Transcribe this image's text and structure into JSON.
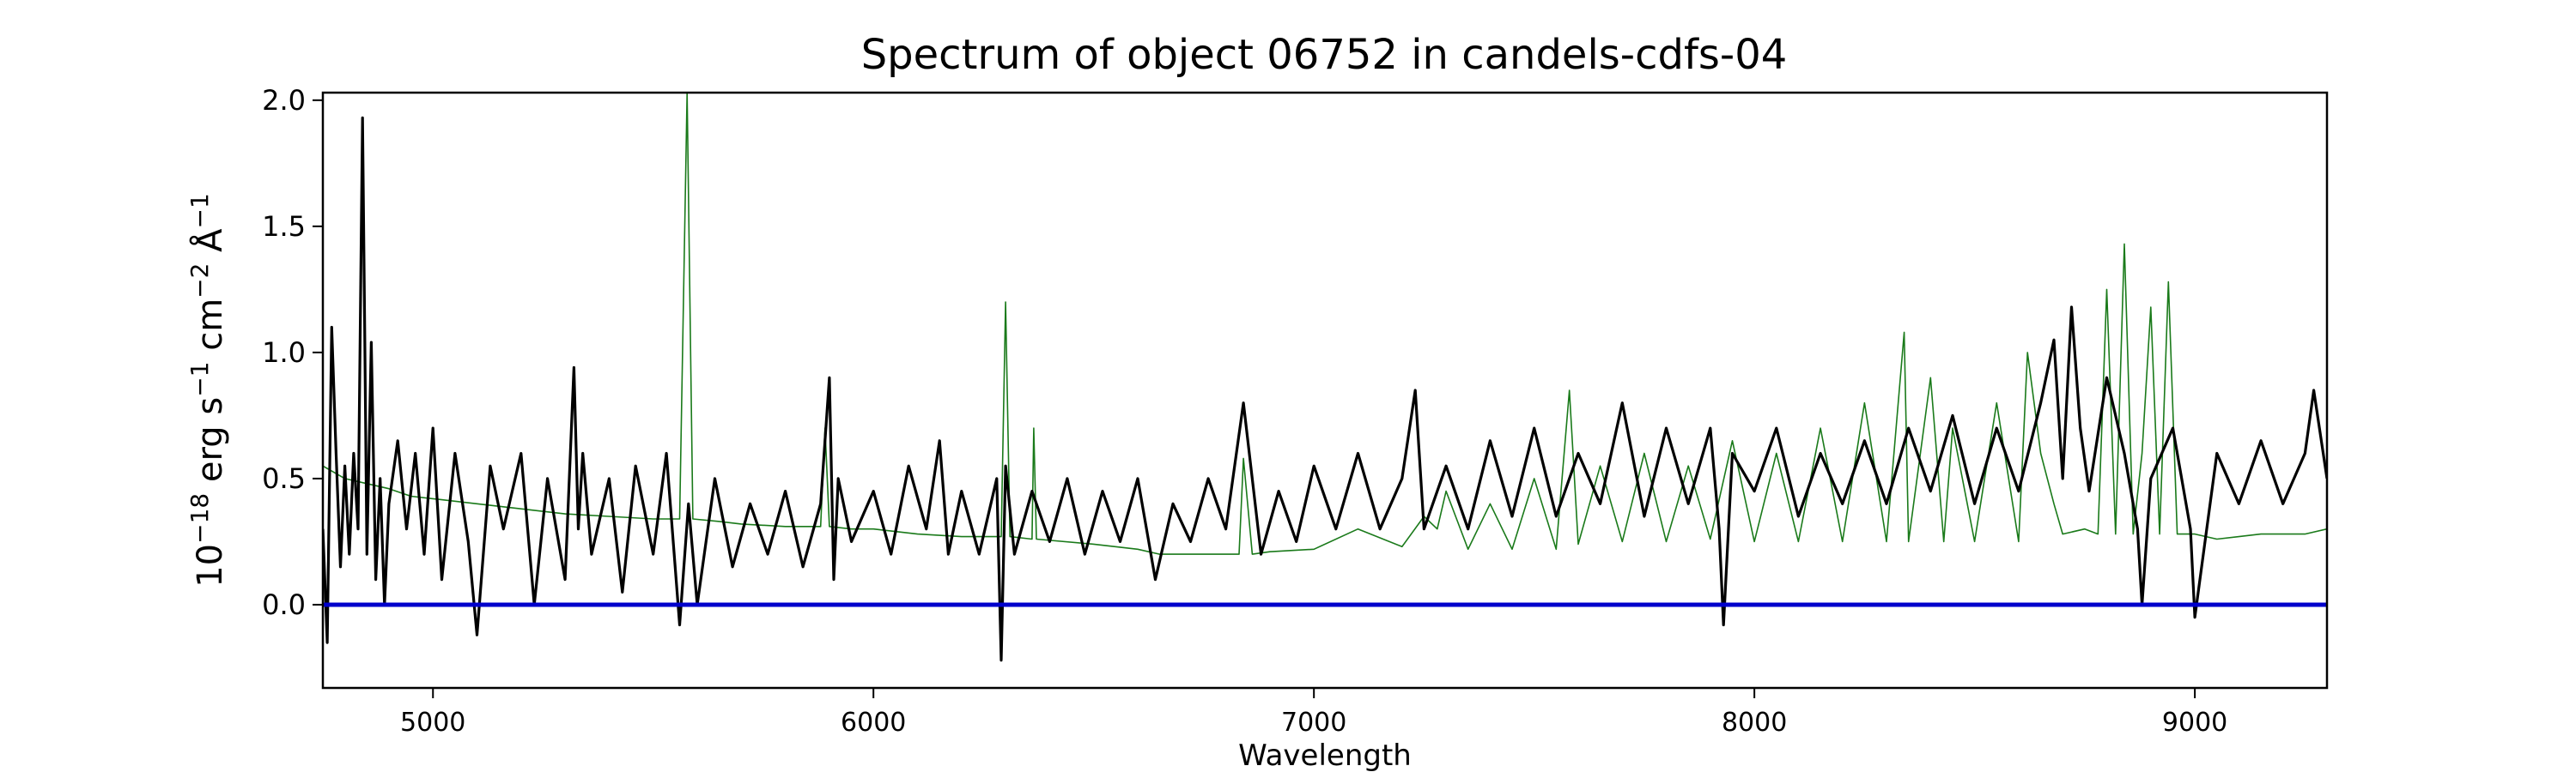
{
  "chart_data": {
    "type": "line",
    "title": "Spectrum of object 06752 in candels-cdfs-04",
    "xlabel": "Wavelength",
    "ylabel_parts": [
      "10",
      "−18",
      " erg s",
      "−1",
      " cm",
      "−2",
      " Å",
      "−1"
    ],
    "xlim": [
      4750,
      9300
    ],
    "ylim": [
      -0.33,
      2.03
    ],
    "x_ticks": [
      5000,
      6000,
      7000,
      8000,
      9000
    ],
    "x_tick_labels": [
      "5000",
      "6000",
      "7000",
      "8000",
      "9000"
    ],
    "y_ticks": [
      0.0,
      0.5,
      1.0,
      1.5,
      2.0
    ],
    "y_tick_labels": [
      "0.0",
      "0.5",
      "1.0",
      "1.5",
      "2.0"
    ],
    "grid": false,
    "legend": "none",
    "series": [
      {
        "color": "#1a7a1a",
        "x": [
          4750,
          4800,
          4850,
          4900,
          4950,
          5000,
          5100,
          5200,
          5300,
          5400,
          5500,
          5560,
          5577,
          5590,
          5650,
          5700,
          5800,
          5880,
          5890,
          5900,
          5950,
          6000,
          6100,
          6200,
          6290,
          6300,
          6310,
          6360,
          6364,
          6370,
          6500,
          6600,
          6650,
          6700,
          6800,
          6830,
          6840,
          6860,
          6900,
          7000,
          7100,
          7200,
          7250,
          7280,
          7300,
          7350,
          7400,
          7450,
          7500,
          7550,
          7580,
          7600,
          7650,
          7700,
          7750,
          7800,
          7850,
          7900,
          7950,
          8000,
          8050,
          8100,
          8150,
          8200,
          8250,
          8300,
          8340,
          8350,
          8400,
          8430,
          8450,
          8500,
          8550,
          8600,
          8620,
          8650,
          8680,
          8700,
          8750,
          8780,
          8800,
          8820,
          8840,
          8860,
          8880,
          8900,
          8920,
          8940,
          8960,
          9000,
          9050,
          9100,
          9150,
          9200,
          9250,
          9300
        ],
        "y": [
          0.55,
          0.5,
          0.48,
          0.46,
          0.43,
          0.42,
          0.4,
          0.38,
          0.36,
          0.35,
          0.34,
          0.34,
          2.03,
          0.34,
          0.33,
          0.32,
          0.31,
          0.31,
          0.7,
          0.31,
          0.3,
          0.3,
          0.28,
          0.27,
          0.27,
          1.2,
          0.27,
          0.26,
          0.7,
          0.26,
          0.24,
          0.22,
          0.2,
          0.2,
          0.2,
          0.2,
          0.58,
          0.2,
          0.21,
          0.22,
          0.3,
          0.23,
          0.35,
          0.3,
          0.45,
          0.22,
          0.4,
          0.22,
          0.5,
          0.22,
          0.85,
          0.24,
          0.55,
          0.25,
          0.6,
          0.25,
          0.55,
          0.26,
          0.65,
          0.25,
          0.6,
          0.25,
          0.7,
          0.25,
          0.8,
          0.25,
          1.08,
          0.25,
          0.9,
          0.25,
          0.7,
          0.25,
          0.8,
          0.25,
          1.0,
          0.6,
          0.4,
          0.28,
          0.3,
          0.28,
          1.25,
          0.28,
          1.43,
          0.28,
          0.6,
          1.18,
          0.28,
          1.28,
          0.28,
          0.28,
          0.26,
          0.27,
          0.28,
          0.28,
          0.28,
          0.3
        ]
      },
      {
        "color": "#000000",
        "x": [
          4750,
          4760,
          4770,
          4780,
          4790,
          4800,
          4810,
          4820,
          4830,
          4840,
          4845,
          4850,
          4860,
          4870,
          4880,
          4890,
          4900,
          4920,
          4940,
          4960,
          4980,
          5000,
          5020,
          5050,
          5080,
          5100,
          5130,
          5160,
          5200,
          5230,
          5260,
          5300,
          5320,
          5330,
          5340,
          5360,
          5400,
          5430,
          5460,
          5500,
          5530,
          5560,
          5580,
          5600,
          5640,
          5680,
          5720,
          5760,
          5800,
          5840,
          5880,
          5900,
          5910,
          5920,
          5950,
          6000,
          6040,
          6080,
          6120,
          6150,
          6170,
          6200,
          6240,
          6280,
          6290,
          6300,
          6320,
          6360,
          6400,
          6440,
          6480,
          6520,
          6560,
          6600,
          6640,
          6680,
          6720,
          6760,
          6800,
          6840,
          6880,
          6920,
          6960,
          7000,
          7050,
          7100,
          7150,
          7200,
          7230,
          7250,
          7300,
          7350,
          7400,
          7450,
          7500,
          7550,
          7600,
          7650,
          7700,
          7750,
          7800,
          7850,
          7900,
          7920,
          7930,
          7950,
          8000,
          8050,
          8100,
          8150,
          8200,
          8250,
          8300,
          8350,
          8400,
          8450,
          8500,
          8550,
          8600,
          8650,
          8680,
          8700,
          8720,
          8740,
          8760,
          8800,
          8840,
          8870,
          8880,
          8900,
          8950,
          8990,
          9000,
          9050,
          9100,
          9150,
          9200,
          9250,
          9270,
          9300
        ],
        "y": [
          0.3,
          -0.15,
          1.1,
          0.6,
          0.15,
          0.55,
          0.2,
          0.6,
          0.3,
          1.93,
          1.1,
          0.2,
          1.04,
          0.1,
          0.5,
          0.0,
          0.4,
          0.65,
          0.3,
          0.6,
          0.2,
          0.7,
          0.1,
          0.6,
          0.25,
          -0.12,
          0.55,
          0.3,
          0.6,
          0.0,
          0.5,
          0.1,
          0.94,
          0.3,
          0.6,
          0.2,
          0.5,
          0.05,
          0.55,
          0.2,
          0.6,
          -0.08,
          0.4,
          0.0,
          0.5,
          0.15,
          0.4,
          0.2,
          0.45,
          0.15,
          0.4,
          0.9,
          0.1,
          0.5,
          0.25,
          0.45,
          0.2,
          0.55,
          0.3,
          0.65,
          0.2,
          0.45,
          0.2,
          0.5,
          -0.22,
          0.55,
          0.2,
          0.45,
          0.25,
          0.5,
          0.2,
          0.45,
          0.25,
          0.5,
          0.1,
          0.4,
          0.25,
          0.5,
          0.3,
          0.8,
          0.2,
          0.45,
          0.25,
          0.55,
          0.3,
          0.6,
          0.3,
          0.5,
          0.85,
          0.3,
          0.55,
          0.3,
          0.65,
          0.35,
          0.7,
          0.35,
          0.6,
          0.4,
          0.8,
          0.35,
          0.7,
          0.4,
          0.7,
          0.3,
          -0.08,
          0.6,
          0.45,
          0.7,
          0.35,
          0.6,
          0.4,
          0.65,
          0.4,
          0.7,
          0.45,
          0.75,
          0.4,
          0.7,
          0.45,
          0.8,
          1.05,
          0.5,
          1.18,
          0.7,
          0.45,
          0.9,
          0.6,
          0.3,
          0.0,
          0.5,
          0.7,
          0.3,
          -0.05,
          0.6,
          0.4,
          0.65,
          0.4,
          0.6,
          0.85,
          0.5
        ]
      },
      {
        "color": "#0000cc",
        "x": [
          4750,
          9300
        ],
        "y": [
          0.0,
          0.0
        ]
      }
    ]
  }
}
